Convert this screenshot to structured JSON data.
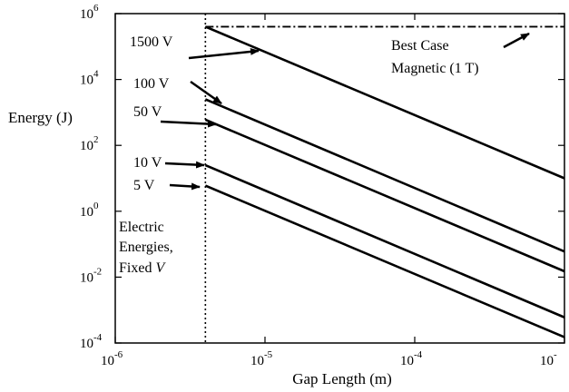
{
  "chart_data": {
    "type": "line",
    "title": "",
    "xlabel": "Gap Length (m)",
    "ylabel": "Energy (J)",
    "xscale": "log",
    "yscale": "log",
    "xlim": [
      1e-06,
      0.001
    ],
    "ylim": [
      0.0001,
      1000000
    ],
    "grid": false,
    "x_ticks": [
      {
        "base": "10",
        "exp": "-6"
      },
      {
        "base": "10",
        "exp": "-5"
      },
      {
        "base": "10",
        "exp": "-4"
      },
      {
        "base": "10",
        "exp": "-"
      }
    ],
    "y_ticks": [
      {
        "base": "10",
        "exp": "-4"
      },
      {
        "base": "10",
        "exp": "-2"
      },
      {
        "base": "10",
        "exp": "0"
      },
      {
        "base": "10",
        "exp": "2"
      },
      {
        "base": "10",
        "exp": "4"
      },
      {
        "base": "10",
        "exp": "6"
      }
    ],
    "series": [
      {
        "name": "1500 V",
        "x": [
          4e-06,
          0.001
        ],
        "y": [
          400000,
          10
        ],
        "style": "solid"
      },
      {
        "name": "100 V",
        "x": [
          4e-06,
          0.001
        ],
        "y": [
          2500,
          0.06
        ],
        "style": "solid"
      },
      {
        "name": "50 V",
        "x": [
          4e-06,
          0.001
        ],
        "y": [
          600,
          0.015
        ],
        "style": "solid"
      },
      {
        "name": "10 V",
        "x": [
          4e-06,
          0.001
        ],
        "y": [
          25,
          0.0006
        ],
        "style": "solid"
      },
      {
        "name": "5 V",
        "x": [
          4e-06,
          0.001
        ],
        "y": [
          6,
          0.00015
        ],
        "style": "solid"
      },
      {
        "name": "Best Case Magnetic (1 T)",
        "x": [
          4e-06,
          0.001
        ],
        "y": [
          400000,
          400000
        ],
        "style": "dashdot"
      }
    ],
    "vertical_line": {
      "x": 4e-06,
      "style": "dotted"
    },
    "annotations": {
      "magnetic_line1": "Best Case",
      "magnetic_line2": "Magnetic (1 T)",
      "electric_line1": "Electric",
      "electric_line2": "Energies,",
      "electric_line3_prefix": "Fixed ",
      "electric_line3_var": "V"
    }
  }
}
